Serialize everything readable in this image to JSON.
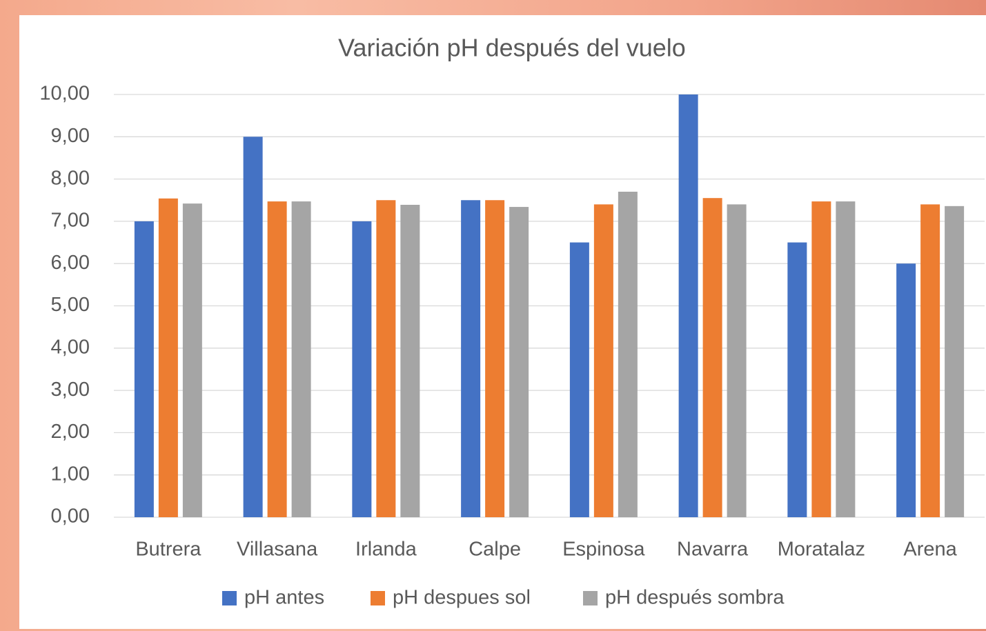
{
  "chart_data": {
    "type": "bar",
    "title": "Variación pH después del vuelo",
    "categories": [
      "Butrera",
      "Villasana",
      "Irlanda",
      "Calpe",
      "Espinosa",
      "Navarra",
      "Moratalaz",
      "Arena"
    ],
    "series": [
      {
        "name": "pH antes",
        "color": "#4472c4",
        "values": [
          7.0,
          9.0,
          7.0,
          7.5,
          6.5,
          10.0,
          6.5,
          6.0
        ]
      },
      {
        "name": "pH despues sol",
        "color": "#ed7d31",
        "values": [
          7.54,
          7.47,
          7.5,
          7.5,
          7.4,
          7.55,
          7.47,
          7.4
        ]
      },
      {
        "name": "pH después sombra",
        "color": "#a5a5a5",
        "values": [
          7.42,
          7.47,
          7.39,
          7.34,
          7.7,
          7.4,
          7.47,
          7.36
        ]
      }
    ],
    "ylim": [
      0,
      10
    ],
    "yticks": [
      {
        "value": 0,
        "label": "0,00"
      },
      {
        "value": 1,
        "label": "1,00"
      },
      {
        "value": 2,
        "label": "2,00"
      },
      {
        "value": 3,
        "label": "3,00"
      },
      {
        "value": 4,
        "label": "4,00"
      },
      {
        "value": 5,
        "label": "5,00"
      },
      {
        "value": 6,
        "label": "6,00"
      },
      {
        "value": 7,
        "label": "7,00"
      },
      {
        "value": 8,
        "label": "8,00"
      },
      {
        "value": 9,
        "label": "9,00"
      },
      {
        "value": 10,
        "label": "10,00"
      }
    ],
    "grid": true,
    "legend": "bottom"
  }
}
